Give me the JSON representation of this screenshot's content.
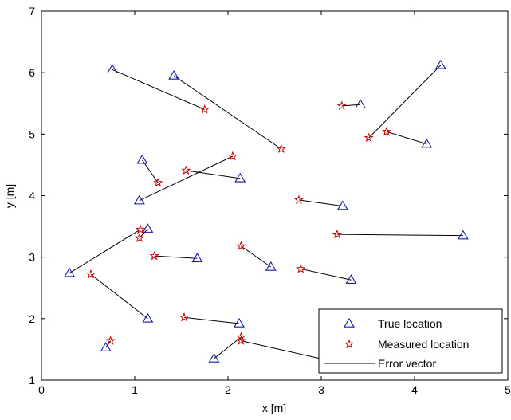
{
  "chart_data": {
    "type": "scatter",
    "title": "",
    "xlabel": "x [m]",
    "ylabel": "y [m]",
    "xlim": [
      0,
      5
    ],
    "ylim": [
      1,
      7
    ],
    "xticks": [
      "0",
      "1",
      "2",
      "3",
      "4",
      "5"
    ],
    "yticks": [
      "1",
      "2",
      "3",
      "4",
      "5",
      "6",
      "7"
    ],
    "grid": false,
    "legend_position": "bottom-right",
    "colors": {
      "true": "#1a1aa6",
      "measured": "#cc0000",
      "error": "#000000"
    },
    "legend": [
      {
        "label": "True location",
        "marker": "triangle"
      },
      {
        "label": "Measured location",
        "marker": "star"
      },
      {
        "label": "Error vector",
        "marker": "line"
      }
    ],
    "pairs": [
      {
        "true": [
          0.76,
          6.05
        ],
        "measured": [
          1.75,
          5.4
        ]
      },
      {
        "true": [
          1.42,
          5.95
        ],
        "measured": [
          2.57,
          4.76
        ]
      },
      {
        "true": [
          4.28,
          6.12
        ],
        "measured": [
          3.51,
          4.94
        ]
      },
      {
        "true": [
          3.42,
          5.48
        ],
        "measured": [
          3.22,
          5.46
        ]
      },
      {
        "true": [
          4.13,
          4.84
        ],
        "measured": [
          3.7,
          5.04
        ]
      },
      {
        "true": [
          1.08,
          4.58
        ],
        "measured": [
          1.25,
          4.21
        ]
      },
      {
        "true": [
          1.05,
          3.92
        ],
        "measured": [
          2.05,
          4.64
        ]
      },
      {
        "true": [
          2.13,
          4.28
        ],
        "measured": [
          1.55,
          4.41
        ]
      },
      {
        "true": [
          3.23,
          3.83
        ],
        "measured": [
          2.76,
          3.93
        ]
      },
      {
        "true": [
          1.14,
          3.46
        ],
        "measured": [
          1.05,
          3.31
        ]
      },
      {
        "true": [
          0.3,
          2.74
        ],
        "measured": [
          1.06,
          3.45
        ]
      },
      {
        "true": [
          1.67,
          2.98
        ],
        "measured": [
          1.21,
          3.02
        ]
      },
      {
        "true": [
          2.46,
          2.84
        ],
        "measured": [
          2.14,
          3.18
        ]
      },
      {
        "true": [
          4.52,
          3.35
        ],
        "measured": [
          3.17,
          3.37
        ]
      },
      {
        "true": [
          3.32,
          2.63
        ],
        "measured": [
          2.78,
          2.81
        ]
      },
      {
        "true": [
          1.14,
          2.0
        ],
        "measured": [
          0.53,
          2.72
        ]
      },
      {
        "true": [
          2.12,
          1.92
        ],
        "measured": [
          1.53,
          2.02
        ]
      },
      {
        "true": [
          0.69,
          1.53
        ],
        "measured": [
          0.74,
          1.64
        ]
      },
      {
        "true": [
          1.85,
          1.35
        ],
        "measured": [
          2.14,
          1.7
        ]
      },
      {
        "true": [
          3.05,
          1.33
        ],
        "measured": [
          2.14,
          1.64
        ]
      }
    ]
  }
}
